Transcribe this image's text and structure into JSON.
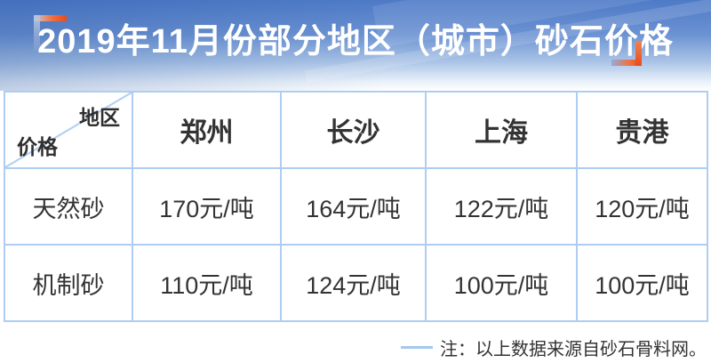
{
  "title": "2019年11月份部分地区（城市）砂石价格",
  "table": {
    "corner": {
      "top_right": "地区",
      "bottom_left": "价格"
    },
    "columns": [
      "郑州",
      "长沙",
      "上海",
      "贵港"
    ],
    "rows": [
      {
        "label": "天然砂",
        "values": [
          "170元/吨",
          "164元/吨",
          "122元/吨",
          "120元/吨"
        ]
      },
      {
        "label": "机制砂",
        "values": [
          "110元/吨",
          "124元/吨",
          "100元/吨",
          "100元/吨"
        ]
      }
    ]
  },
  "footer": {
    "note": "注：以上数据来源自砂石骨料网。"
  },
  "colors": {
    "banner_blue_top": "#4e7ac7",
    "banner_fade_bottom": "#ffffff",
    "table_border": "#aecdf2",
    "text_dark": "#333333",
    "bracket_red": "#e84a1e",
    "bracket_blue_gray": "#b5c3de",
    "footer_dash": "#a5c8ec",
    "title_text": "#ffffff"
  },
  "chart_data": {
    "type": "table",
    "title": "2019年11月份部分地区（城市）砂石价格",
    "categories": [
      "郑州",
      "长沙",
      "上海",
      "贵港"
    ],
    "series": [
      {
        "name": "天然砂",
        "values": [
          170,
          164,
          122,
          120
        ]
      },
      {
        "name": "机制砂",
        "values": [
          110,
          124,
          100,
          100
        ]
      }
    ],
    "unit": "元/吨",
    "note": "注：以上数据来源自砂石骨料网。"
  }
}
